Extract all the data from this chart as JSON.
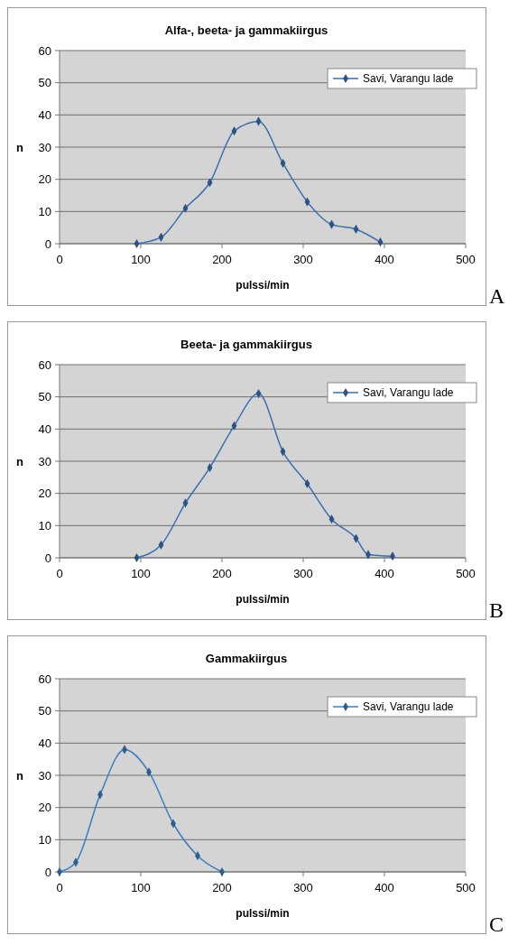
{
  "chart_data": [
    {
      "type": "line",
      "title": "Alfa-, beeta- ja gammakiirgus",
      "xlabel": "pulssi/min",
      "ylabel": "n",
      "xlim": [
        0,
        500
      ],
      "xticks": [
        0,
        100,
        200,
        300,
        400,
        500
      ],
      "ylim": [
        0,
        60
      ],
      "yticks": [
        0,
        10,
        20,
        30,
        40,
        50,
        60
      ],
      "grid": "y",
      "legend": "top right",
      "marker": "diamond",
      "line_style": "solid",
      "annotations": [
        "A"
      ],
      "x": [
        95,
        125,
        155,
        185,
        215,
        245,
        275,
        305,
        335,
        365,
        395
      ],
      "series": [
        {
          "name": "Savi, Varangu lade",
          "color": "#3a6fb0",
          "values": [
            0,
            2,
            11,
            19,
            35,
            38,
            25,
            13,
            6,
            4.5,
            0.5
          ]
        }
      ]
    },
    {
      "type": "line",
      "title": "Beeta- ja gammakiirgus",
      "xlabel": "pulssi/min",
      "ylabel": "n",
      "xlim": [
        0,
        500
      ],
      "xticks": [
        0,
        100,
        200,
        300,
        400,
        500
      ],
      "ylim": [
        0,
        60
      ],
      "yticks": [
        0,
        10,
        20,
        30,
        40,
        50,
        60
      ],
      "grid": "y",
      "legend": "top right",
      "marker": "diamond",
      "line_style": "solid",
      "annotations": [
        "B"
      ],
      "x": [
        95,
        125,
        155,
        185,
        215,
        245,
        275,
        305,
        335,
        365,
        380,
        410
      ],
      "series": [
        {
          "name": "Savi, Varangu lade",
          "color": "#3a6fb0",
          "values": [
            0,
            4,
            17,
            28,
            41,
            51,
            33,
            23,
            12,
            6,
            1,
            0.5
          ]
        }
      ]
    },
    {
      "type": "line",
      "title": "Gammakiirgus",
      "xlabel": "pulssi/min",
      "ylabel": "n",
      "xlim": [
        0,
        500
      ],
      "xticks": [
        0,
        100,
        200,
        300,
        400,
        500
      ],
      "ylim": [
        0,
        60
      ],
      "yticks": [
        0,
        10,
        20,
        30,
        40,
        50,
        60
      ],
      "grid": "y",
      "legend": "top right",
      "marker": "diamond",
      "line_style": "solid",
      "annotations": [
        "C"
      ],
      "x": [
        0,
        20,
        50,
        80,
        110,
        140,
        170,
        200
      ],
      "series": [
        {
          "name": "Savi, Varangu lade",
          "color": "#3a7fc0",
          "values": [
            0,
            3,
            24,
            38,
            31,
            15,
            5,
            0
          ]
        }
      ]
    }
  ]
}
